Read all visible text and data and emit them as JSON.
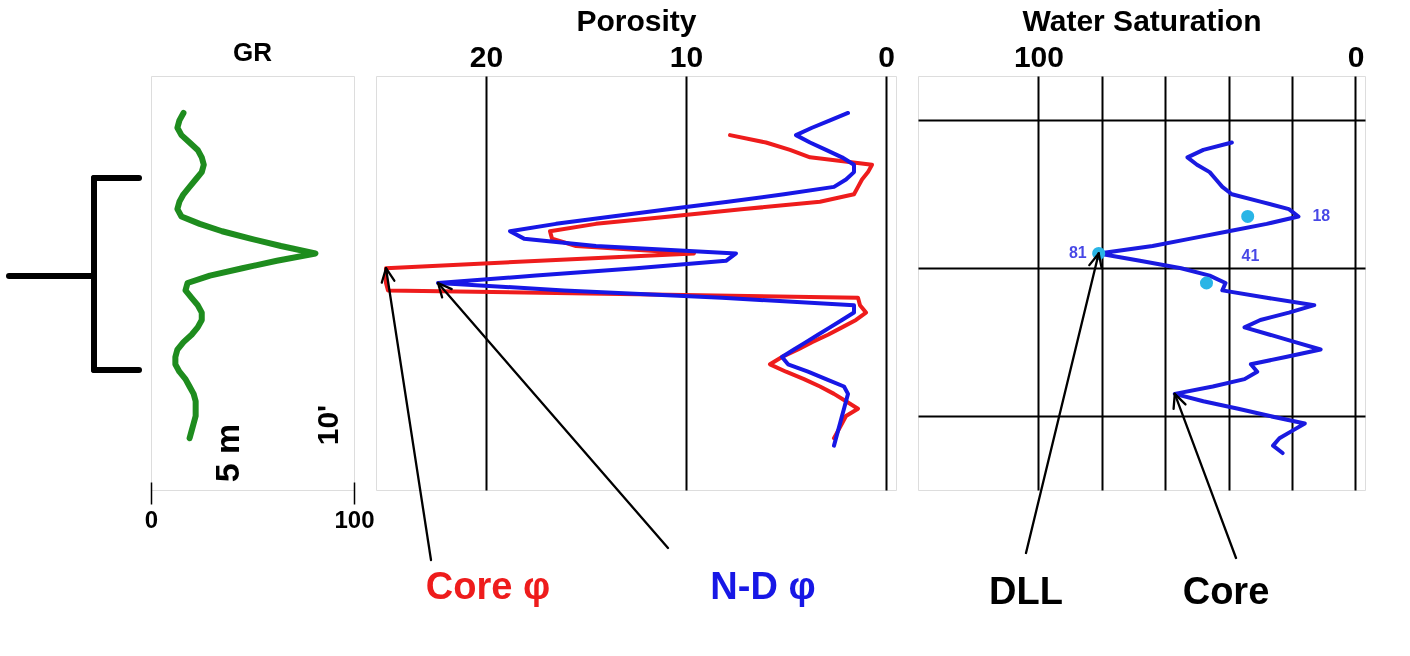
{
  "chart_data": [
    {
      "type": "line",
      "title": "GR",
      "orientation": "horizontal",
      "categories": [
        null,
        null,
        null,
        null,
        null,
        null,
        null,
        null,
        null,
        null,
        null,
        null,
        null,
        null,
        null,
        null,
        null,
        null,
        null,
        null,
        null,
        null,
        null,
        null,
        null,
        null,
        null,
        null,
        null,
        null,
        null,
        null,
        null,
        null,
        null,
        null,
        null,
        null,
        null,
        null,
        null,
        null,
        null,
        null,
        null,
        null,
        null,
        null,
        null,
        null,
        null,
        null,
        null,
        null,
        null,
        null,
        null
      ],
      "xlim": [
        0,
        100
      ],
      "xticks": [
        0,
        100
      ],
      "tick_labels": "x",
      "grid": false,
      "marker": "none",
      "annotations": [
        "5 m",
        "10'"
      ],
      "series": [
        {
          "color": "#1e8c1e",
          "values": [
            null,
            null,
            null,
            null,
            null,
            16,
            14,
            13,
            15,
            19,
            23,
            25,
            26,
            25,
            22,
            19,
            16,
            14,
            13,
            15,
            24,
            35,
            49,
            64,
            81,
            62,
            45,
            29,
            18,
            17,
            20,
            23,
            25,
            25,
            23,
            20,
            16,
            13,
            12,
            12,
            14,
            17,
            19,
            21,
            22,
            22,
            22,
            21,
            20,
            19,
            null,
            null,
            null,
            null,
            null,
            null,
            null
          ]
        }
      ]
    },
    {
      "type": "line",
      "xlabel": "Porosity",
      "orientation": "horizontal",
      "categories": [
        null,
        null,
        null,
        null,
        null,
        null,
        null,
        null,
        null,
        null,
        null,
        null,
        null,
        null,
        null,
        null,
        null,
        null,
        null,
        null,
        null,
        null,
        null,
        null,
        null,
        null,
        null,
        null,
        null,
        null,
        null,
        null,
        null,
        null,
        null,
        null,
        null,
        null,
        null,
        null,
        null,
        null,
        null,
        null,
        null,
        null,
        null,
        null,
        null,
        null,
        null,
        null,
        null,
        null,
        null,
        null,
        null
      ],
      "xlim": [
        25.5,
        -0.5
      ],
      "xticks": [
        20,
        10,
        0
      ],
      "tick_labels": "x",
      "grid": "x",
      "marker": "none",
      "series": [
        {
          "color": "#ee1c1c",
          "values": [
            null,
            null,
            null,
            null,
            null,
            null,
            null,
            null,
            7.8,
            6.0,
            4.8,
            3.8,
            0.7,
            0.9,
            1.2,
            1.4,
            1.6,
            3.3,
            7.1,
            10.8,
            14.5,
            16.8,
            16.7,
            15.5,
            9.6,
            17.3,
            25.0,
            25.0,
            25.0,
            24.9,
            1.4,
            1.3,
            1.0,
            1.5,
            2.2,
            2.9,
            3.7,
            4.4,
            5.2,
            5.8,
            5.0,
            4.1,
            3.3,
            2.6,
            2.0,
            1.4,
            2.0,
            2.2,
            2.4,
            2.6,
            null,
            null,
            null,
            null,
            null,
            null,
            null
          ]
        },
        {
          "color": "#1717e6",
          "values": [
            null,
            null,
            null,
            null,
            null,
            1.9,
            2.8,
            3.7,
            4.5,
            3.8,
            3.0,
            2.2,
            1.6,
            1.6,
            2.0,
            2.6,
            5.1,
            7.9,
            10.8,
            13.7,
            16.5,
            18.8,
            18.1,
            14.5,
            7.5,
            8.0,
            12.5,
            17.5,
            22.4,
            16.1,
            8.2,
            1.6,
            1.6,
            2.2,
            2.8,
            3.4,
            4.0,
            4.6,
            5.2,
            4.9,
            3.9,
            3.0,
            2.1,
            1.9,
            2.0,
            2.1,
            2.2,
            2.3,
            2.4,
            2.5,
            2.6,
            null,
            null,
            null,
            null,
            null,
            null
          ]
        }
      ],
      "annotations": [
        "Core φ",
        "N-D φ"
      ]
    },
    {
      "type": "line",
      "xlabel": "Water Saturation",
      "orientation": "horizontal",
      "categories": [
        null,
        null,
        null,
        null,
        null,
        null,
        null,
        null,
        null,
        null,
        null,
        null,
        null,
        null,
        null,
        null,
        null,
        null,
        null,
        null,
        null,
        null,
        null,
        null,
        null,
        null,
        null,
        null,
        null,
        null,
        null,
        null,
        null,
        null,
        null,
        null,
        null,
        null,
        null,
        null,
        null,
        null,
        null,
        null,
        null,
        null,
        null,
        null,
        null,
        null,
        null,
        null,
        null,
        null,
        null,
        null,
        null
      ],
      "xlim": [
        138,
        -3
      ],
      "xticks": [
        100,
        {
          "value": 80,
          "label": null
        },
        {
          "value": 60,
          "label": null
        },
        {
          "value": 40,
          "label": null
        },
        {
          "value": 20,
          "label": null
        },
        0
      ],
      "tick_labels": "x",
      "grid": true,
      "series": [
        {
          "type": "line",
          "marker": "none",
          "color": "#1a1ae0",
          "values": [
            null,
            null,
            null,
            null,
            null,
            null,
            null,
            null,
            null,
            39,
            48,
            53,
            50,
            46,
            44,
            42,
            39,
            30,
            21,
            18,
            28,
            40,
            52,
            64,
            81,
            68,
            55,
            46,
            41,
            42,
            28,
            13,
            21,
            30,
            35,
            27,
            19,
            11,
            22,
            33,
            31,
            35,
            45,
            57,
            48,
            37,
            27,
            16,
            20,
            24,
            26,
            23,
            null,
            null,
            null,
            null,
            null
          ],
          "value_labels": [
            null,
            null,
            null,
            null,
            null,
            null,
            null,
            null,
            null,
            null,
            null,
            null,
            null,
            null,
            null,
            null,
            null,
            null,
            null,
            "18",
            null,
            null,
            null,
            null,
            "81",
            null,
            null,
            null,
            "41",
            null,
            null,
            null,
            null,
            null,
            null,
            null,
            null,
            null,
            null,
            null,
            null,
            null,
            null,
            null,
            null,
            null,
            null,
            null,
            null,
            null,
            null,
            null,
            null,
            null,
            null,
            null,
            null
          ]
        },
        {
          "type": "scatter",
          "marker": "circle",
          "color": "#29b5e6",
          "values": [
            null,
            null,
            null,
            null,
            null,
            null,
            null,
            null,
            null,
            null,
            null,
            null,
            null,
            null,
            null,
            null,
            null,
            null,
            null,
            34,
            null,
            null,
            null,
            null,
            81,
            null,
            null,
            null,
            47,
            null,
            null,
            null,
            null,
            null,
            null,
            null,
            null,
            null,
            null,
            null,
            null,
            null,
            null,
            null,
            null,
            null,
            null,
            null,
            null,
            null,
            null,
            null,
            null,
            null,
            null,
            null,
            null
          ]
        }
      ],
      "annotations": [
        "DLL",
        "Core"
      ]
    }
  ]
}
